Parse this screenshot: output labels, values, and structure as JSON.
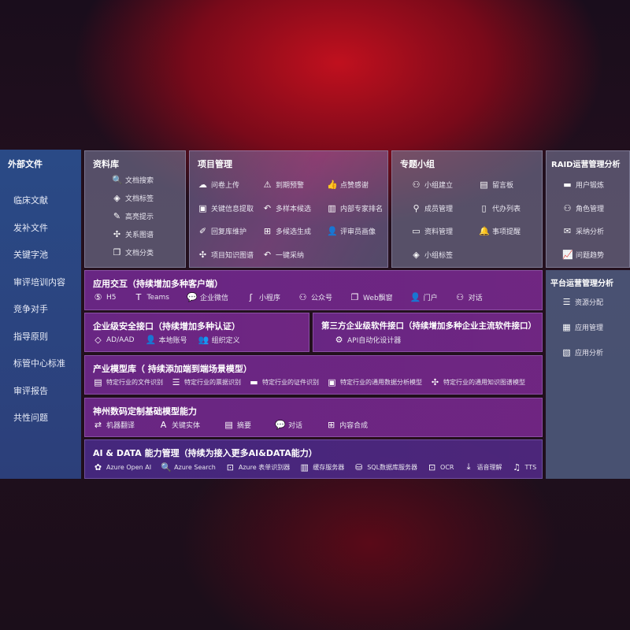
{
  "left": {
    "title": "外部文件",
    "items": [
      "临床文献",
      "发补文件",
      "关键字池",
      "审评培训内容",
      "竞争对手",
      "指导原则",
      "标管中心标准",
      "审评报告",
      "共性问题"
    ]
  },
  "library": {
    "title": "资料库",
    "items": [
      {
        "icon": "doc-search-icon",
        "g": "🔍",
        "label": "文档搜索"
      },
      {
        "icon": "tag-icon",
        "g": "◈",
        "label": "文档标签"
      },
      {
        "icon": "pen-icon",
        "g": "✎",
        "label": "高亮提示"
      },
      {
        "icon": "graph-icon",
        "g": "✣",
        "label": "关系图谱"
      },
      {
        "icon": "doc-stack-icon",
        "g": "❐",
        "label": "文档分类"
      }
    ]
  },
  "project": {
    "title": "项目管理",
    "items": [
      {
        "icon": "cloud-upload-icon",
        "g": "☁",
        "label": "问卷上传"
      },
      {
        "icon": "alarm-icon",
        "g": "⚠",
        "label": "到期预警"
      },
      {
        "icon": "thumbs-up-icon",
        "g": "👍",
        "label": "点赞感谢"
      },
      {
        "icon": "window-icon",
        "g": "▣",
        "label": "关键信息提取"
      },
      {
        "icon": "reply-icon",
        "g": "↶",
        "label": "多样本候选"
      },
      {
        "icon": "ranking-icon",
        "g": "▥",
        "label": "内部专家排名"
      },
      {
        "icon": "edit-icon",
        "g": "✐",
        "label": "回复库维护"
      },
      {
        "icon": "puzzle-icon",
        "g": "⊞",
        "label": "多候选生成"
      },
      {
        "icon": "user-icon",
        "g": "👤",
        "label": "评审员画像"
      },
      {
        "icon": "graph-icon",
        "g": "✣",
        "label": "项目知识图谱"
      },
      {
        "icon": "reply-icon",
        "g": "↶",
        "label": "一键采纳"
      }
    ]
  },
  "group": {
    "title": "专题小组",
    "items": [
      {
        "icon": "users-icon",
        "g": "⚇",
        "label": "小组建立"
      },
      {
        "icon": "bbs-icon",
        "g": "▤",
        "label": "留言板"
      },
      {
        "icon": "user-add-icon",
        "g": "⚲",
        "label": "成员管理"
      },
      {
        "icon": "clipboard-icon",
        "g": "▯",
        "label": "代办列表"
      },
      {
        "icon": "folder-icon",
        "g": "▭",
        "label": "资料管理"
      },
      {
        "icon": "bell-icon",
        "g": "🔔",
        "label": "事项提醒"
      },
      {
        "icon": "tag-icon",
        "g": "◈",
        "label": "小组标签"
      }
    ]
  },
  "raid": {
    "title": "RAID运营管理分析",
    "items": [
      {
        "icon": "id-card-icon",
        "g": "▬",
        "label": "用户锻炼"
      },
      {
        "icon": "users-icon",
        "g": "⚇",
        "label": "角色管理"
      },
      {
        "icon": "qa-icon",
        "g": "✉",
        "label": "采纳分析"
      },
      {
        "icon": "trend-icon",
        "g": "📈",
        "label": "问题趋势"
      }
    ]
  },
  "platform": {
    "title": "平台运营管理分析",
    "items": [
      {
        "icon": "list-icon",
        "g": "☰",
        "label": "资源分配"
      },
      {
        "icon": "apps-icon",
        "g": "▦",
        "label": "应用管理"
      },
      {
        "icon": "chart-icon",
        "g": "▧",
        "label": "应用分析"
      }
    ]
  },
  "interaction": {
    "title": "应用交互（持续增加多种客户端）",
    "items": [
      {
        "icon": "html5-icon",
        "g": "⑤",
        "label": "H5"
      },
      {
        "icon": "teams-icon",
        "g": "T",
        "label": "Teams"
      },
      {
        "icon": "wechat-icon",
        "g": "💬",
        "label": "企业微信"
      },
      {
        "icon": "miniprogram-icon",
        "g": "ʃ",
        "label": "小程序"
      },
      {
        "icon": "users-icon",
        "g": "⚇",
        "label": "公众号"
      },
      {
        "icon": "web-window-icon",
        "g": "❐",
        "label": "Web飘窗"
      },
      {
        "icon": "portal-icon",
        "g": "👤",
        "label": "门户"
      },
      {
        "icon": "chat-users-icon",
        "g": "⚇",
        "label": "对话"
      }
    ]
  },
  "security": {
    "title": "企业级安全接口（持续增加多种认证）",
    "items": [
      {
        "icon": "ad-icon",
        "g": "◇",
        "label": "AD/AAD"
      },
      {
        "icon": "local-account-icon",
        "g": "👤",
        "label": "本地账号"
      },
      {
        "icon": "org-icon",
        "g": "👥",
        "label": "组织定义"
      }
    ]
  },
  "thirdparty": {
    "title": "第三方企业级软件接口（持续增加多种企业主流软件接口）",
    "items": [
      {
        "icon": "gear-icon",
        "g": "⚙",
        "label": "API自动化设计器"
      }
    ]
  },
  "industry": {
    "title": "产业模型库（ 持续添加端到端场景模型）",
    "items": [
      {
        "icon": "file-icon",
        "g": "▤",
        "label": "特定行业的文件识别"
      },
      {
        "icon": "receipt-icon",
        "g": "☰",
        "label": "特定行业的票据识别"
      },
      {
        "icon": "id-card-icon",
        "g": "▬",
        "label": "特定行业的证件识别"
      },
      {
        "icon": "data-analysis-icon",
        "g": "▣",
        "label": "特定行业的通用数据分析模型"
      },
      {
        "icon": "graph-icon",
        "g": "✣",
        "label": "特定行业的通用知识图谱模型"
      }
    ]
  },
  "basemodel": {
    "title": "神州数码定制基础模型能力",
    "items": [
      {
        "icon": "translate-icon",
        "g": "⇄",
        "label": "机器翻译"
      },
      {
        "icon": "entity-icon",
        "g": "A",
        "label": "关键实体"
      },
      {
        "icon": "summary-icon",
        "g": "▤",
        "label": "摘要"
      },
      {
        "icon": "chat-icon",
        "g": "💬",
        "label": "对话"
      },
      {
        "icon": "compose-icon",
        "g": "⊞",
        "label": "内容合成"
      }
    ]
  },
  "aidata": {
    "title": "AI & DATA 能力管理（持续为接入更多AI&DATA能力）",
    "items": [
      {
        "icon": "openai-icon",
        "g": "✿",
        "label": "Azure Open AI"
      },
      {
        "icon": "search-doc-icon",
        "g": "🔍",
        "label": "Azure Search"
      },
      {
        "icon": "form-recognizer-icon",
        "g": "⊡",
        "label": "Azure 表单识别器"
      },
      {
        "icon": "cache-server-icon",
        "g": "▥",
        "label": "缓存服务器"
      },
      {
        "icon": "sql-icon",
        "g": "⛁",
        "label": "SQL数据库服务器"
      },
      {
        "icon": "ocr-icon",
        "g": "⊡",
        "label": "OCR"
      },
      {
        "icon": "speech-icon",
        "g": "⤓",
        "label": "语音理解"
      },
      {
        "icon": "tts-icon",
        "g": "♫",
        "label": "TTS"
      }
    ]
  }
}
